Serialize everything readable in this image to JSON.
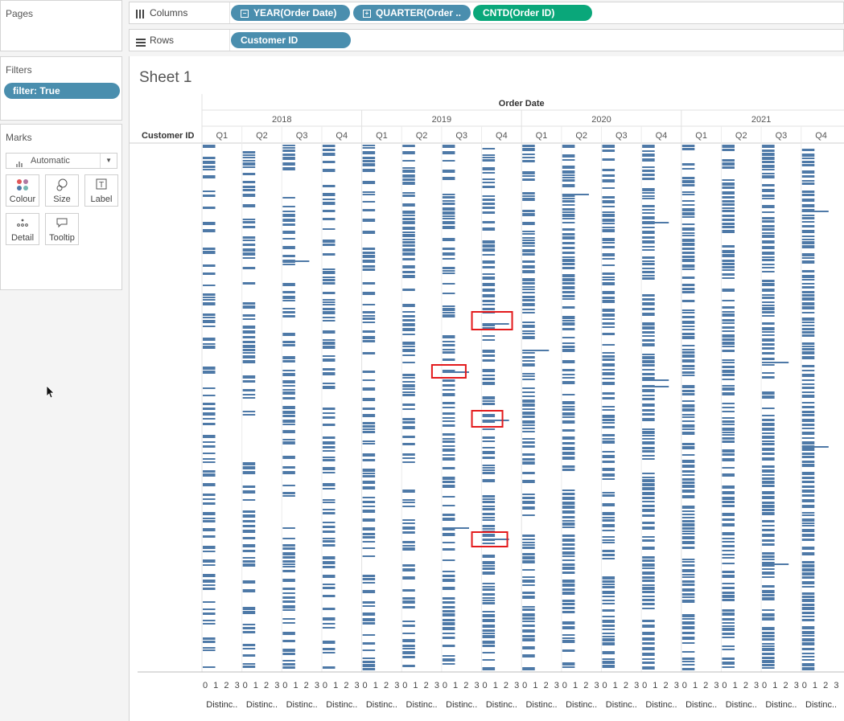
{
  "left": {
    "pages_title": "Pages",
    "filters_title": "Filters",
    "filter_pill": "filter: True",
    "marks_title": "Marks",
    "mark_type": "Automatic",
    "mark_buttons": [
      {
        "label": "Colour",
        "icon": "colour-dots-icon"
      },
      {
        "label": "Size",
        "icon": "size-circles-icon"
      },
      {
        "label": "Label",
        "icon": "label-T-icon"
      },
      {
        "label": "Detail",
        "icon": "detail-dots-icon"
      },
      {
        "label": "Tooltip",
        "icon": "tooltip-bubble-icon"
      }
    ]
  },
  "shelves": {
    "columns_label": "Columns",
    "rows_label": "Rows",
    "column_pills": [
      "YEAR(Order Date)",
      "QUARTER(Order ..",
      "CNTD(Order ID)"
    ],
    "row_pills": [
      "Customer ID"
    ]
  },
  "sheet": {
    "title": "Sheet 1",
    "header_top": "Order Date",
    "row_header": "Customer ID",
    "years": [
      "2018",
      "2019",
      "2020",
      "2021"
    ],
    "quarters": [
      "Q1",
      "Q2",
      "Q3",
      "Q4"
    ],
    "axis_ticks": [
      "0",
      "1",
      "2",
      "3"
    ],
    "axis_label": "Distinc..",
    "bar_color": "#4e79a7",
    "highlight_color": "#e31a1c"
  },
  "chart_data": {
    "type": "bar",
    "orientation": "horizontal",
    "rows_field": "Customer ID",
    "columns": [
      "2018 Q1",
      "2018 Q2",
      "2018 Q3",
      "2018 Q4",
      "2019 Q1",
      "2019 Q2",
      "2019 Q3",
      "2019 Q4",
      "2020 Q1",
      "2020 Q2",
      "2020 Q3",
      "2020 Q4",
      "2021 Q1",
      "2021 Q2",
      "2021 Q3",
      "2021 Q4"
    ],
    "measure": "Distinct count of Order ID",
    "xlim": [
      0,
      3
    ],
    "typical_value": 1,
    "values_above_one": [
      {
        "column": "2018 Q3",
        "value": 2
      },
      {
        "column": "2019 Q3",
        "value": 2
      },
      {
        "column": "2019 Q3",
        "value": 2
      },
      {
        "column": "2019 Q4",
        "value": 2
      },
      {
        "column": "2019 Q4",
        "value": 2
      },
      {
        "column": "2019 Q4",
        "value": 2
      },
      {
        "column": "2020 Q1",
        "value": 2
      },
      {
        "column": "2020 Q2",
        "value": 2
      },
      {
        "column": "2020 Q4",
        "value": 2
      },
      {
        "column": "2020 Q4",
        "value": 2
      },
      {
        "column": "2020 Q4",
        "value": 2
      },
      {
        "column": "2021 Q3",
        "value": 2
      },
      {
        "column": "2021 Q3",
        "value": 2
      },
      {
        "column": "2021 Q4",
        "value": 2
      },
      {
        "column": "2021 Q4",
        "value": 2
      }
    ],
    "highlighted": [
      "2019 Q3",
      "2019 Q4",
      "2019 Q4",
      "2019 Q4"
    ]
  }
}
